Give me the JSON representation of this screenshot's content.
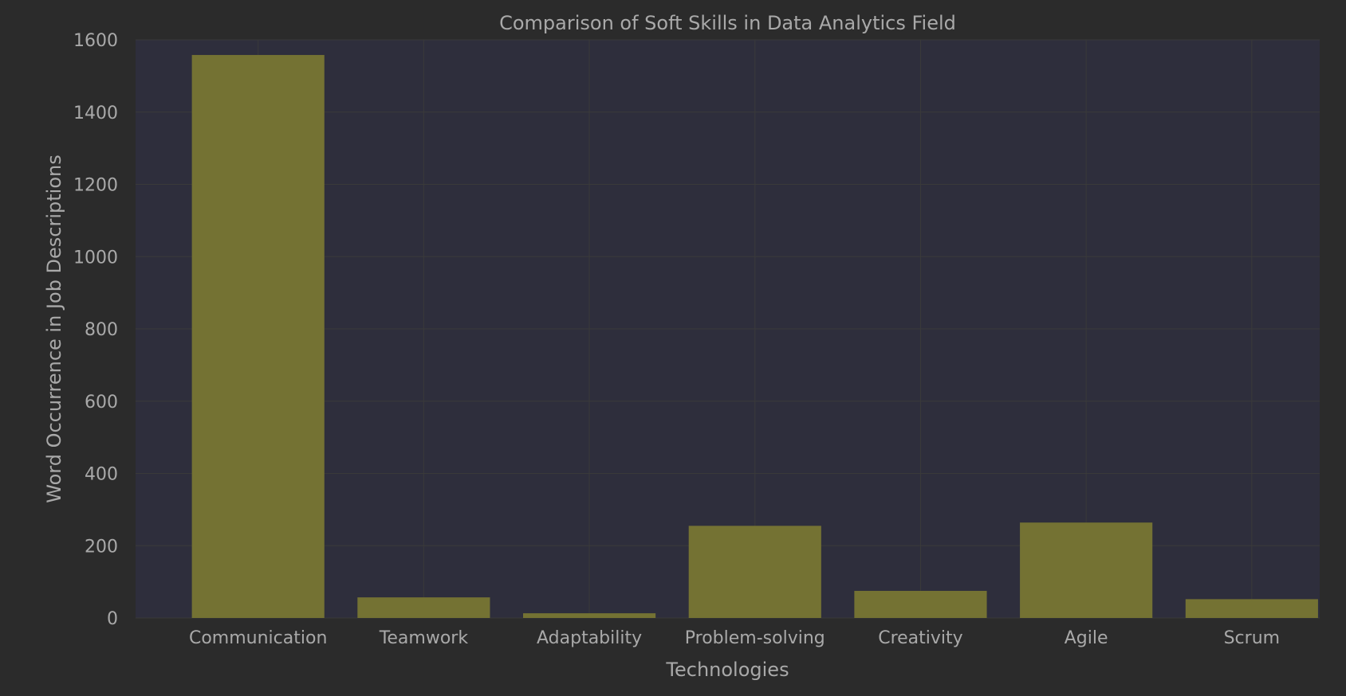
{
  "chart_data": {
    "type": "bar",
    "title": "Comparison of Soft Skills in Data Analytics Field",
    "xlabel": "Technologies",
    "ylabel": "Word Occurrence in Job Descriptions",
    "categories": [
      "Communication",
      "Teamwork",
      "Adaptability",
      "Problem-solving",
      "Creativity",
      "Agile",
      "Scrum"
    ],
    "values": [
      1558,
      57,
      13,
      255,
      75,
      264,
      52
    ],
    "ylim": [
      0,
      1600
    ],
    "yticks": [
      "0",
      "200",
      "400",
      "600",
      "800",
      "1000",
      "1200",
      "1400",
      "1600"
    ],
    "grid": true,
    "legend": "none",
    "colors": {
      "background": "#2b2b2b",
      "plot_background": "#2e2e3c",
      "bar": "#747233",
      "grid": "#3a3a3a",
      "text": "#a9a9a9"
    }
  }
}
